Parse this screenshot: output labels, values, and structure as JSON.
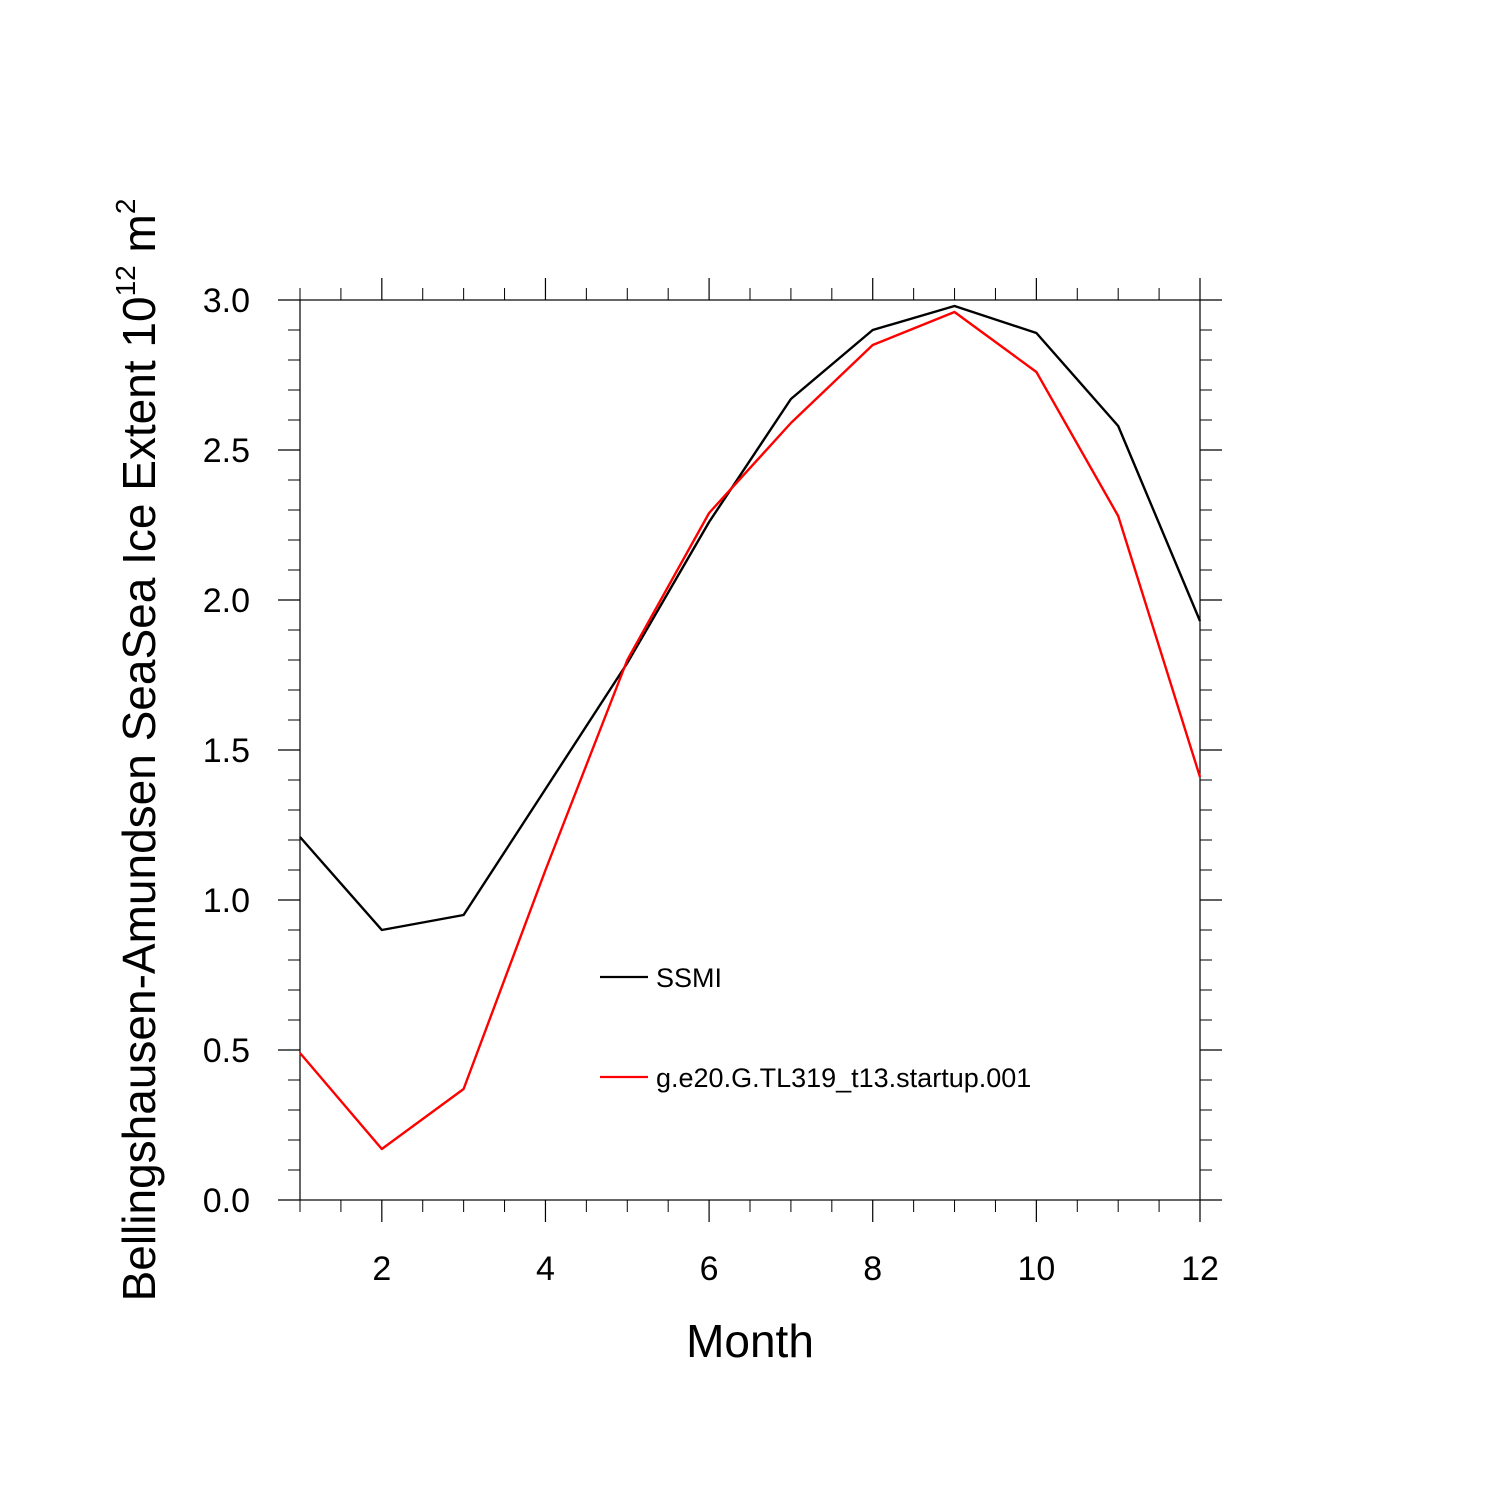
{
  "chart_data": {
    "type": "line",
    "title": "",
    "xlabel": "Month",
    "ylabel": {
      "main": "Bellingshausen-Amundsen SeaSea Ice Extent 10",
      "exponent": "12",
      "unit": " m",
      "unit_exponent": "2"
    },
    "xlim": [
      1,
      12
    ],
    "ylim": [
      0,
      3
    ],
    "x_ticks": [
      2,
      4,
      6,
      8,
      10,
      12
    ],
    "x_tick_labels": [
      "2",
      "4",
      "6",
      "8",
      "10",
      "12"
    ],
    "y_ticks": [
      0,
      0.5,
      1.0,
      1.5,
      2.0,
      2.5,
      3.0
    ],
    "y_tick_labels": [
      "0.0",
      "0.5",
      "1.0",
      "1.5",
      "2.0",
      "2.5",
      "3.0"
    ],
    "grid": false,
    "legend_position": "center",
    "x": [
      1,
      2,
      3,
      4,
      5,
      6,
      7,
      8,
      9,
      10,
      11,
      12
    ],
    "series": [
      {
        "name": "SSMI",
        "color": "#000000",
        "values": [
          1.21,
          0.9,
          0.95,
          1.37,
          1.79,
          2.26,
          2.67,
          2.9,
          2.98,
          2.89,
          2.58,
          1.93
        ]
      },
      {
        "name": "g.e20.G.TL319_t13.startup.001",
        "color": "#ff0000",
        "values": [
          0.49,
          0.17,
          0.37,
          1.1,
          1.8,
          2.29,
          2.59,
          2.85,
          2.96,
          2.76,
          2.28,
          1.41
        ]
      }
    ]
  }
}
